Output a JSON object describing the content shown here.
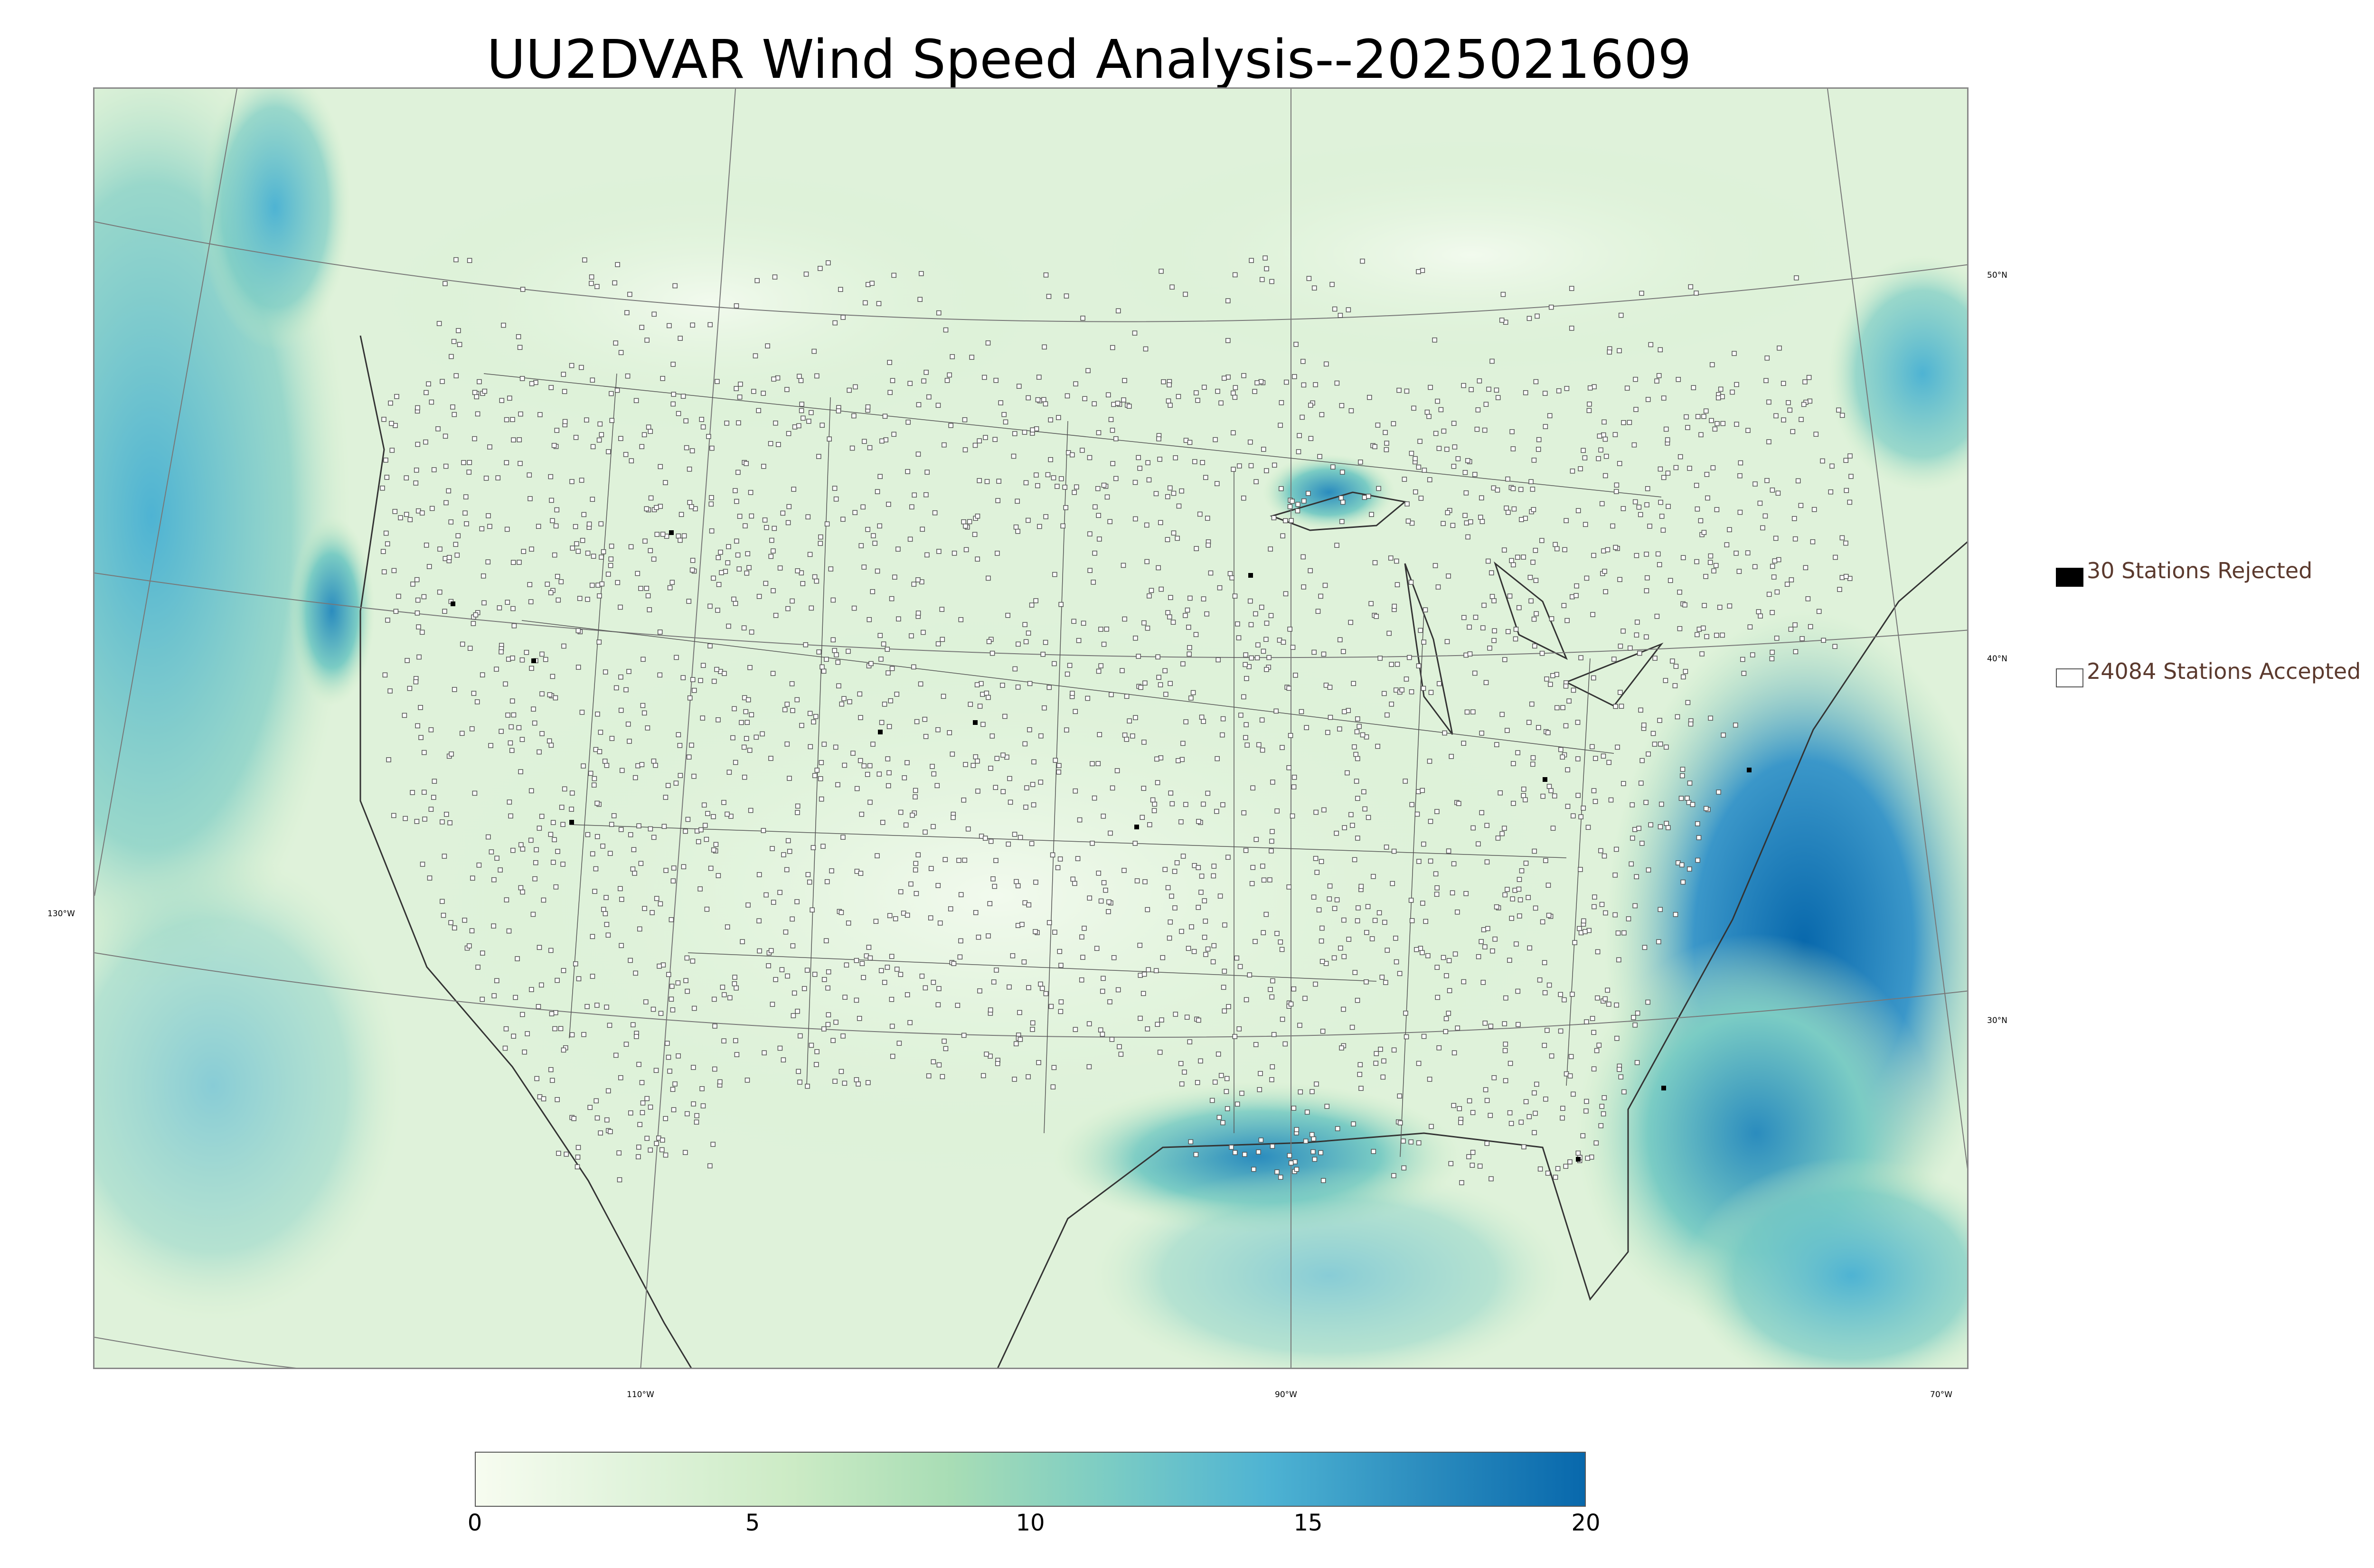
{
  "title": "UU2DVAR Wind Speed Analysis--2025021609",
  "map": {
    "lat_labels": [
      "50°N",
      "40°N",
      "30°N"
    ],
    "lon_labels": [
      "130°W",
      "110°W",
      "90°W",
      "70°W"
    ],
    "colormap": [
      "#f7fcf0",
      "#e0f3db",
      "#ccebc5",
      "#a8ddb5",
      "#7bccc4",
      "#4eb3d3",
      "#2b8cbe",
      "#0868ac"
    ]
  },
  "legend": {
    "rejected_label": "30 Stations Rejected",
    "accepted_label": "24084 Stations Accepted",
    "rejected_color": "#000000",
    "accepted_color": "#ffffff"
  },
  "colorbar": {
    "ticks": [
      "0",
      "5",
      "10",
      "15",
      "20"
    ],
    "min": 0,
    "max": 20,
    "levels": [
      0,
      1,
      2,
      3,
      4,
      5,
      6,
      7,
      8,
      9,
      10,
      11,
      12,
      13,
      14,
      15,
      16,
      17,
      18,
      19,
      20
    ]
  }
}
